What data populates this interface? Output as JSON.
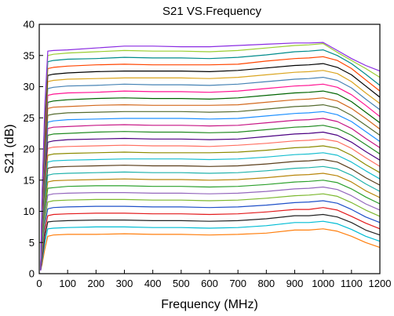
{
  "chart_data": {
    "type": "line",
    "title": "S21 VS.Frequency",
    "xlabel": "Frequency (MHz)",
    "ylabel": "S21 (dB)",
    "xlim": [
      0,
      1200
    ],
    "ylim": [
      0,
      40
    ],
    "xticks": [
      0,
      100,
      200,
      300,
      400,
      500,
      600,
      700,
      800,
      900,
      1000,
      1100,
      1200
    ],
    "yticks": [
      0,
      5,
      10,
      15,
      20,
      25,
      30,
      35,
      40
    ],
    "grid": false,
    "legend": "none",
    "x": [
      5,
      10,
      20,
      30,
      50,
      100,
      200,
      300,
      400,
      500,
      600,
      700,
      800,
      900,
      950,
      1000,
      1050,
      1100,
      1150,
      1200
    ],
    "series_colors": [
      "#ff7f0e",
      "#00bcd4",
      "#222222",
      "#e31a1c",
      "#1f50c8",
      "#7cb82f",
      "#9467bd",
      "#2ca02c",
      "#b8860b",
      "#20b2aa",
      "#5a3e1b",
      "#17becf",
      "#8b8b00",
      "#ff6f61",
      "#4b0082",
      "#228b22",
      "#c71585",
      "#1e90ff",
      "#556b2f",
      "#d2691e",
      "#006400",
      "#ff1493",
      "#4682b4",
      "#daa520",
      "#000000",
      "#ff4500",
      "#008b8b",
      "#9acd32",
      "#8a2be2",
      "#cd5c5c",
      "#2f4f4f",
      "#ffa500"
    ],
    "series": [
      {
        "values": [
          0.5,
          1.5,
          4.0,
          6.0,
          6.2,
          6.3,
          6.3,
          6.4,
          6.3,
          6.3,
          6.2,
          6.3,
          6.5,
          7.0,
          7.0,
          7.2,
          6.8,
          6.0,
          5.0,
          4.2
        ]
      },
      {
        "values": [
          0.5,
          2.0,
          5.0,
          7.2,
          7.3,
          7.4,
          7.5,
          7.5,
          7.4,
          7.4,
          7.3,
          7.4,
          7.7,
          8.2,
          8.2,
          8.4,
          8.0,
          7.1,
          6.0,
          5.2
        ]
      },
      {
        "values": [
          0.5,
          2.4,
          6.0,
          8.3,
          8.4,
          8.5,
          8.6,
          8.6,
          8.5,
          8.5,
          8.4,
          8.5,
          8.8,
          9.3,
          9.3,
          9.5,
          9.1,
          8.2,
          7.0,
          6.2
        ]
      },
      {
        "values": [
          0.5,
          2.8,
          7.0,
          9.3,
          9.5,
          9.6,
          9.7,
          9.7,
          9.6,
          9.6,
          9.5,
          9.6,
          9.9,
          10.3,
          10.3,
          10.6,
          10.2,
          9.2,
          8.1,
          7.2
        ]
      },
      {
        "values": [
          0.5,
          3.2,
          8.0,
          10.4,
          10.6,
          10.7,
          10.8,
          10.8,
          10.7,
          10.7,
          10.6,
          10.7,
          11.0,
          11.4,
          11.5,
          11.7,
          11.3,
          10.3,
          9.1,
          8.2
        ]
      },
      {
        "values": [
          0.5,
          3.6,
          8.8,
          11.5,
          11.7,
          11.8,
          11.9,
          11.9,
          11.8,
          11.8,
          11.7,
          11.8,
          12.1,
          12.5,
          12.6,
          12.8,
          12.4,
          11.4,
          10.2,
          9.2
        ]
      },
      {
        "values": [
          0.5,
          4.0,
          9.6,
          12.6,
          12.8,
          12.9,
          13.0,
          13.0,
          12.9,
          12.9,
          12.8,
          12.9,
          13.2,
          13.6,
          13.7,
          13.9,
          13.5,
          12.5,
          11.2,
          10.2
        ]
      },
      {
        "values": [
          0.5,
          4.4,
          10.4,
          13.7,
          13.8,
          14.0,
          14.1,
          14.1,
          14.0,
          14.0,
          13.9,
          14.0,
          14.3,
          14.7,
          14.8,
          15.0,
          14.6,
          13.6,
          12.3,
          11.2
        ]
      },
      {
        "values": [
          0.5,
          4.8,
          11.2,
          14.7,
          14.9,
          15.0,
          15.1,
          15.2,
          15.1,
          15.1,
          15.0,
          15.1,
          15.4,
          15.8,
          15.9,
          16.1,
          15.7,
          14.7,
          13.3,
          12.2
        ]
      },
      {
        "values": [
          0.5,
          5.2,
          12.0,
          15.8,
          16.0,
          16.1,
          16.2,
          16.3,
          16.2,
          16.2,
          16.1,
          16.2,
          16.5,
          16.9,
          17.0,
          17.2,
          16.8,
          15.8,
          14.4,
          13.2
        ]
      },
      {
        "values": [
          0.5,
          5.6,
          12.8,
          16.9,
          17.1,
          17.2,
          17.3,
          17.4,
          17.3,
          17.3,
          17.2,
          17.3,
          17.6,
          18.0,
          18.1,
          18.3,
          17.9,
          16.8,
          15.4,
          14.2
        ]
      },
      {
        "values": [
          0.5,
          6.0,
          13.6,
          17.9,
          18.1,
          18.2,
          18.3,
          18.4,
          18.4,
          18.4,
          18.3,
          18.4,
          18.7,
          19.1,
          19.2,
          19.4,
          19.0,
          17.9,
          16.5,
          15.2
        ]
      },
      {
        "values": [
          0.5,
          6.4,
          14.4,
          19.0,
          19.2,
          19.3,
          19.4,
          19.5,
          19.4,
          19.4,
          19.4,
          19.5,
          19.8,
          20.2,
          20.3,
          20.5,
          20.1,
          19.0,
          17.5,
          16.2
        ]
      },
      {
        "values": [
          0.5,
          6.8,
          15.2,
          20.1,
          20.3,
          20.4,
          20.5,
          20.6,
          20.5,
          20.5,
          20.4,
          20.6,
          20.9,
          21.3,
          21.4,
          21.6,
          21.2,
          20.1,
          18.6,
          17.2
        ]
      },
      {
        "values": [
          0.5,
          7.2,
          16.0,
          21.1,
          21.3,
          21.5,
          21.6,
          21.7,
          21.6,
          21.6,
          21.5,
          21.6,
          22.0,
          22.4,
          22.5,
          22.7,
          22.2,
          21.1,
          19.6,
          18.2
        ]
      },
      {
        "values": [
          0.5,
          7.6,
          16.8,
          22.2,
          22.4,
          22.5,
          22.7,
          22.8,
          22.7,
          22.7,
          22.6,
          22.7,
          23.1,
          23.5,
          23.6,
          23.8,
          23.3,
          22.2,
          20.7,
          19.2
        ]
      },
      {
        "values": [
          0.5,
          8.0,
          17.6,
          23.3,
          23.5,
          23.6,
          23.8,
          23.9,
          23.8,
          23.8,
          23.7,
          23.8,
          24.2,
          24.6,
          24.7,
          24.9,
          24.4,
          23.3,
          21.7,
          20.2
        ]
      },
      {
        "values": [
          0.5,
          8.4,
          18.4,
          24.3,
          24.5,
          24.7,
          24.8,
          24.9,
          24.9,
          24.9,
          24.8,
          24.9,
          25.3,
          25.7,
          25.8,
          26.0,
          25.5,
          24.4,
          22.8,
          21.2
        ]
      },
      {
        "values": [
          0.5,
          8.8,
          19.2,
          25.4,
          25.6,
          25.8,
          25.9,
          26.0,
          26.0,
          26.0,
          25.9,
          26.0,
          26.4,
          26.8,
          26.9,
          27.1,
          26.6,
          25.4,
          23.8,
          22.2
        ]
      },
      {
        "values": [
          0.5,
          9.2,
          20.0,
          26.5,
          26.7,
          26.8,
          27.0,
          27.1,
          27.0,
          27.0,
          27.0,
          27.1,
          27.5,
          27.9,
          28.0,
          28.2,
          27.7,
          26.5,
          24.9,
          23.2
        ]
      },
      {
        "values": [
          0.5,
          9.6,
          20.8,
          27.5,
          27.7,
          27.9,
          28.1,
          28.2,
          28.1,
          28.1,
          28.0,
          28.2,
          28.6,
          29.0,
          29.1,
          29.3,
          28.8,
          27.6,
          25.9,
          24.2
        ]
      },
      {
        "values": [
          0.5,
          10.0,
          21.6,
          28.6,
          28.8,
          29.0,
          29.1,
          29.3,
          29.2,
          29.2,
          29.1,
          29.3,
          29.7,
          30.1,
          30.2,
          30.4,
          29.9,
          28.7,
          27.0,
          25.2
        ]
      },
      {
        "values": [
          0.5,
          10.4,
          22.4,
          29.7,
          29.9,
          30.1,
          30.2,
          30.4,
          30.3,
          30.3,
          30.2,
          30.4,
          30.8,
          31.2,
          31.3,
          31.5,
          31.0,
          29.8,
          28.0,
          26.3
        ]
      },
      {
        "values": [
          0.5,
          10.8,
          23.2,
          30.8,
          31.0,
          31.2,
          31.3,
          31.4,
          31.4,
          31.4,
          31.3,
          31.5,
          31.9,
          32.3,
          32.4,
          32.6,
          32.1,
          30.8,
          29.0,
          27.3
        ]
      },
      {
        "values": [
          0.5,
          11.2,
          24.0,
          31.8,
          32.0,
          32.2,
          32.4,
          32.5,
          32.5,
          32.5,
          32.4,
          32.6,
          33.0,
          33.4,
          33.5,
          33.7,
          33.1,
          31.9,
          30.1,
          28.3
        ]
      },
      {
        "values": [
          0.5,
          11.6,
          24.8,
          32.9,
          33.1,
          33.3,
          33.5,
          33.6,
          33.5,
          33.5,
          33.5,
          33.6,
          34.1,
          34.5,
          34.6,
          34.8,
          34.2,
          32.9,
          31.1,
          29.3
        ]
      },
      {
        "values": [
          0.5,
          12.0,
          25.6,
          34.0,
          34.2,
          34.4,
          34.5,
          34.7,
          34.6,
          34.6,
          34.5,
          34.7,
          35.1,
          35.6,
          35.7,
          35.9,
          35.0,
          33.7,
          32.0,
          30.2
        ]
      },
      {
        "values": [
          0.5,
          12.4,
          26.4,
          35.0,
          35.2,
          35.4,
          35.6,
          35.8,
          35.7,
          35.7,
          35.6,
          35.8,
          36.2,
          36.6,
          36.7,
          36.9,
          35.5,
          34.2,
          32.9,
          31.5
        ]
      },
      {
        "values": [
          0.5,
          12.8,
          27.2,
          35.7,
          35.8,
          35.9,
          36.2,
          36.5,
          36.5,
          36.4,
          36.4,
          36.6,
          36.8,
          37.0,
          37.0,
          37.1,
          35.8,
          34.5,
          33.4,
          32.5
        ]
      }
    ]
  }
}
